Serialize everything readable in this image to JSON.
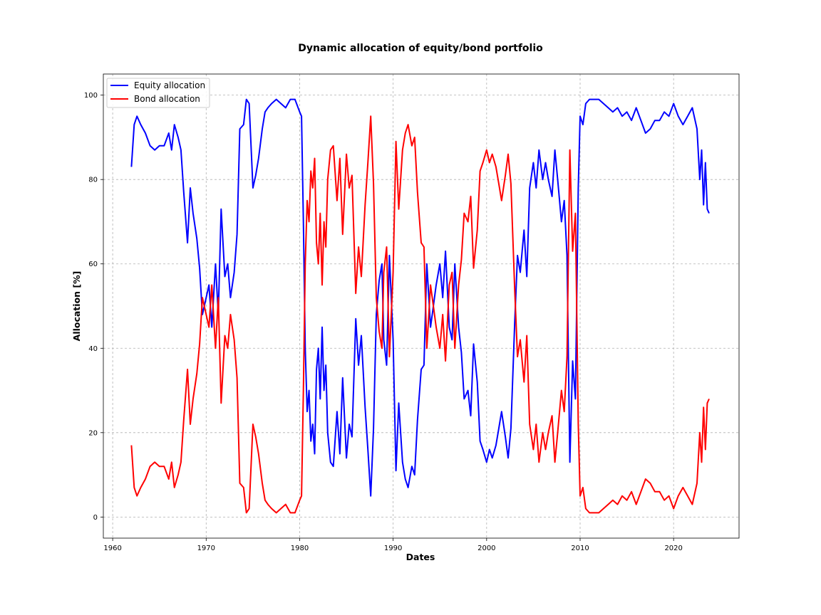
{
  "chart_data": {
    "type": "line",
    "title": "Dynamic allocation of equity/bond portfolio",
    "xlabel": "Dates",
    "ylabel": "Allocation [%]",
    "xlim": [
      1959,
      2027
    ],
    "ylim": [
      -5,
      105
    ],
    "xticks": [
      "1960",
      "1970",
      "1980",
      "1990",
      "2000",
      "2010",
      "2020"
    ],
    "yticks": [
      "0",
      "20",
      "40",
      "60",
      "80",
      "100"
    ],
    "grid": true,
    "legend_position": "top-left",
    "x": [
      1962.0,
      1962.3,
      1962.6,
      1963.0,
      1963.5,
      1964.0,
      1964.5,
      1965.0,
      1965.5,
      1966.0,
      1966.3,
      1966.6,
      1967.0,
      1967.3,
      1967.6,
      1968.0,
      1968.3,
      1968.6,
      1969.0,
      1969.3,
      1969.6,
      1970.0,
      1970.3,
      1970.6,
      1971.0,
      1971.3,
      1971.6,
      1972.0,
      1972.3,
      1972.6,
      1973.0,
      1973.3,
      1973.6,
      1974.0,
      1974.3,
      1974.6,
      1975.0,
      1975.3,
      1975.6,
      1976.0,
      1976.3,
      1976.6,
      1977.0,
      1977.5,
      1978.0,
      1978.5,
      1979.0,
      1979.5,
      1980.0,
      1980.2,
      1980.4,
      1980.6,
      1980.8,
      1981.0,
      1981.2,
      1981.4,
      1981.6,
      1981.8,
      1982.0,
      1982.2,
      1982.4,
      1982.6,
      1982.8,
      1983.0,
      1983.3,
      1983.6,
      1984.0,
      1984.3,
      1984.6,
      1985.0,
      1985.3,
      1985.6,
      1986.0,
      1986.3,
      1986.6,
      1987.0,
      1987.3,
      1987.6,
      1987.9,
      1988.2,
      1988.5,
      1988.8,
      1989.0,
      1989.3,
      1989.6,
      1990.0,
      1990.3,
      1990.6,
      1991.0,
      1991.3,
      1991.6,
      1992.0,
      1992.3,
      1992.6,
      1993.0,
      1993.3,
      1993.6,
      1994.0,
      1994.3,
      1994.6,
      1995.0,
      1995.3,
      1995.6,
      1996.0,
      1996.3,
      1996.6,
      1997.0,
      1997.3,
      1997.6,
      1998.0,
      1998.3,
      1998.6,
      1999.0,
      1999.3,
      1999.6,
      2000.0,
      2000.3,
      2000.6,
      2001.0,
      2001.3,
      2001.6,
      2002.0,
      2002.3,
      2002.6,
      2003.0,
      2003.3,
      2003.6,
      2004.0,
      2004.3,
      2004.6,
      2005.0,
      2005.3,
      2005.6,
      2006.0,
      2006.3,
      2006.6,
      2007.0,
      2007.3,
      2007.6,
      2008.0,
      2008.3,
      2008.6,
      2008.9,
      2009.2,
      2009.5,
      2009.8,
      2010.0,
      2010.3,
      2010.6,
      2011.0,
      2011.5,
      2012.0,
      2012.5,
      2013.0,
      2013.5,
      2014.0,
      2014.5,
      2015.0,
      2015.5,
      2016.0,
      2016.5,
      2017.0,
      2017.5,
      2018.0,
      2018.5,
      2019.0,
      2019.5,
      2020.0,
      2020.5,
      2021.0,
      2021.5,
      2022.0,
      2022.5,
      2022.8,
      2023.0,
      2023.2,
      2023.4,
      2023.6,
      2023.8
    ],
    "series": [
      {
        "name": "Equity allocation",
        "color": "#0000ff",
        "values": [
          83,
          93,
          95,
          93,
          91,
          88,
          87,
          88,
          88,
          91,
          87,
          93,
          90,
          87,
          77,
          65,
          78,
          72,
          66,
          59,
          48,
          52,
          55,
          45,
          60,
          48,
          73,
          57,
          60,
          52,
          58,
          67,
          92,
          93,
          99,
          98,
          78,
          81,
          85,
          92,
          96,
          97,
          98,
          99,
          98,
          97,
          99,
          99,
          96,
          95,
          70,
          40,
          25,
          30,
          18,
          22,
          15,
          35,
          40,
          28,
          45,
          30,
          36,
          20,
          13,
          12,
          25,
          15,
          33,
          14,
          22,
          19,
          47,
          36,
          43,
          26,
          16,
          5,
          21,
          48,
          56,
          60,
          42,
          36,
          62,
          42,
          11,
          27,
          13,
          9,
          7,
          12,
          10,
          23,
          35,
          36,
          60,
          45,
          50,
          55,
          60,
          52,
          63,
          45,
          42,
          60,
          45,
          39,
          28,
          30,
          24,
          41,
          32,
          18,
          16,
          13,
          16,
          14,
          17,
          21,
          25,
          19,
          14,
          21,
          46,
          62,
          58,
          68,
          57,
          78,
          84,
          78,
          87,
          80,
          84,
          80,
          76,
          87,
          80,
          70,
          75,
          62,
          13,
          37,
          28,
          78,
          95,
          93,
          98,
          99,
          99,
          99,
          98,
          97,
          96,
          97,
          95,
          96,
          94,
          97,
          94,
          91,
          92,
          94,
          94,
          96,
          95,
          98,
          95,
          93,
          95,
          97,
          92,
          80,
          87,
          74,
          84,
          73,
          72
        ]
      },
      {
        "name": "Bond allocation",
        "color": "#ff0000",
        "values": [
          17,
          7,
          5,
          7,
          9,
          12,
          13,
          12,
          12,
          9,
          13,
          7,
          10,
          13,
          23,
          35,
          22,
          28,
          34,
          41,
          52,
          48,
          45,
          55,
          40,
          52,
          27,
          43,
          40,
          48,
          42,
          33,
          8,
          7,
          1,
          2,
          22,
          19,
          15,
          8,
          4,
          3,
          2,
          1,
          2,
          3,
          1,
          1,
          4,
          5,
          30,
          60,
          75,
          70,
          82,
          78,
          85,
          65,
          60,
          72,
          55,
          70,
          64,
          80,
          87,
          88,
          75,
          85,
          67,
          86,
          78,
          81,
          53,
          64,
          57,
          74,
          84,
          95,
          79,
          52,
          44,
          40,
          58,
          64,
          38,
          58,
          89,
          73,
          87,
          91,
          93,
          88,
          90,
          77,
          65,
          64,
          40,
          55,
          50,
          45,
          40,
          48,
          37,
          55,
          58,
          40,
          55,
          61,
          72,
          70,
          76,
          59,
          68,
          82,
          84,
          87,
          84,
          86,
          83,
          79,
          75,
          81,
          86,
          79,
          54,
          38,
          42,
          32,
          43,
          22,
          16,
          22,
          13,
          20,
          16,
          20,
          24,
          13,
          20,
          30,
          25,
          38,
          87,
          63,
          72,
          22,
          5,
          7,
          2,
          1,
          1,
          1,
          2,
          3,
          4,
          3,
          5,
          4,
          6,
          3,
          6,
          9,
          8,
          6,
          6,
          4,
          5,
          2,
          5,
          7,
          5,
          3,
          8,
          20,
          13,
          26,
          16,
          27,
          28
        ]
      }
    ]
  }
}
